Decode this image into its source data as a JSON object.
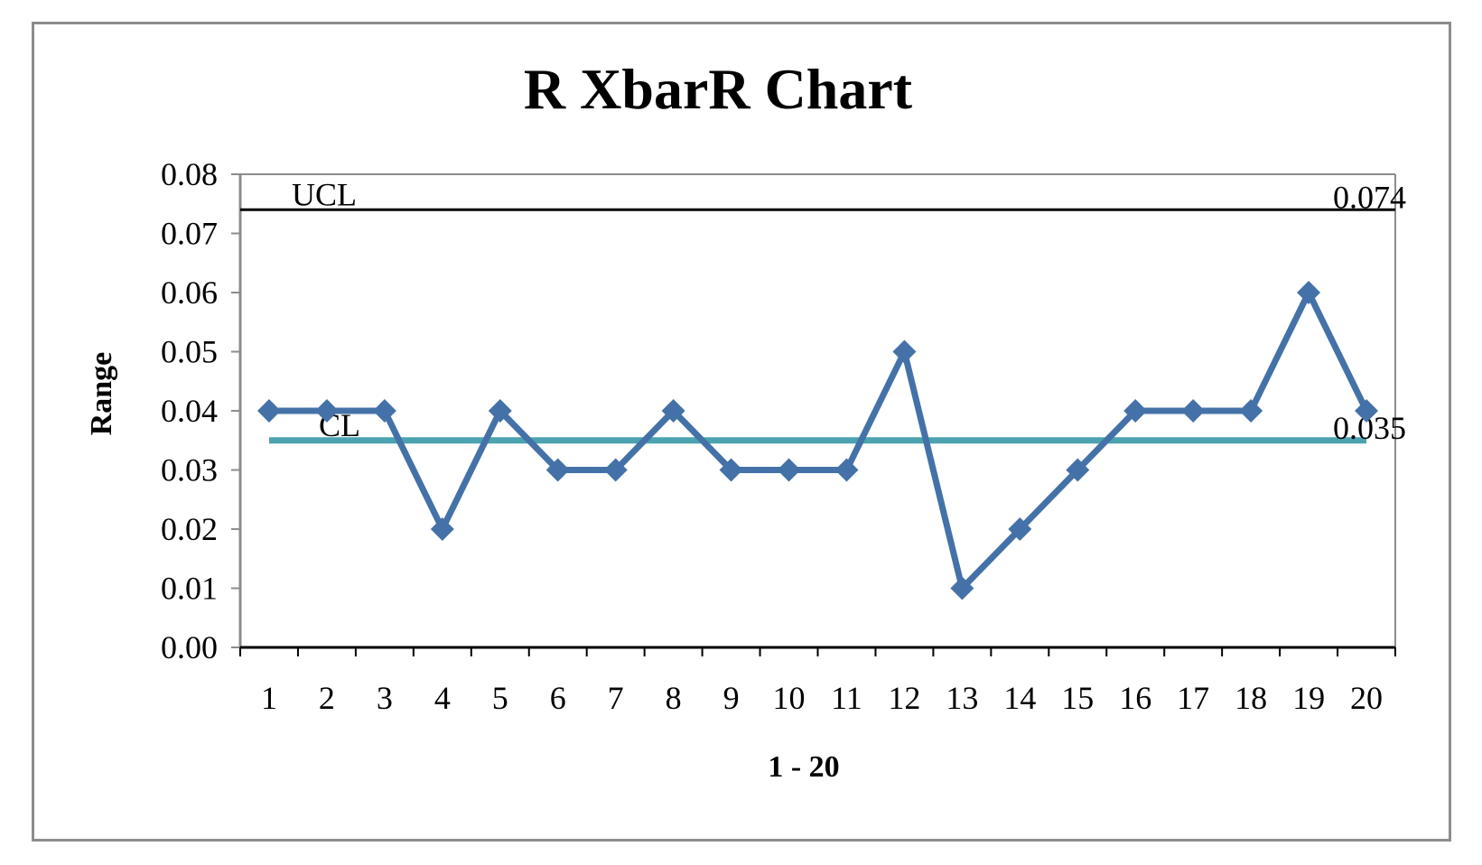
{
  "chart_data": {
    "type": "line",
    "title": "R XbarR Chart",
    "xlabel": "1 - 20",
    "ylabel": "Range",
    "categories": [
      "1",
      "2",
      "3",
      "4",
      "5",
      "6",
      "7",
      "8",
      "9",
      "10",
      "11",
      "12",
      "13",
      "14",
      "15",
      "16",
      "17",
      "18",
      "19",
      "20"
    ],
    "series": [
      {
        "values": [
          0.04,
          0.04,
          0.04,
          0.02,
          0.04,
          0.03,
          0.03,
          0.04,
          0.03,
          0.03,
          0.03,
          0.05,
          0.01,
          0.02,
          0.03,
          0.04,
          0.04,
          0.04,
          0.06,
          0.04
        ],
        "color": "#4472a8",
        "marker": "diamond"
      }
    ],
    "control_lines": [
      {
        "label": "UCL",
        "value": 0.074,
        "value_label": "0.074",
        "color": "#000000"
      },
      {
        "label": "CL",
        "value": 0.035,
        "value_label": "0.035",
        "color": "#4ba3b0"
      }
    ],
    "ylim": [
      0,
      0.08
    ],
    "yticks": [
      "0.00",
      "0.01",
      "0.02",
      "0.03",
      "0.04",
      "0.05",
      "0.06",
      "0.07",
      "0.08"
    ],
    "grid": false,
    "legend": "none"
  }
}
